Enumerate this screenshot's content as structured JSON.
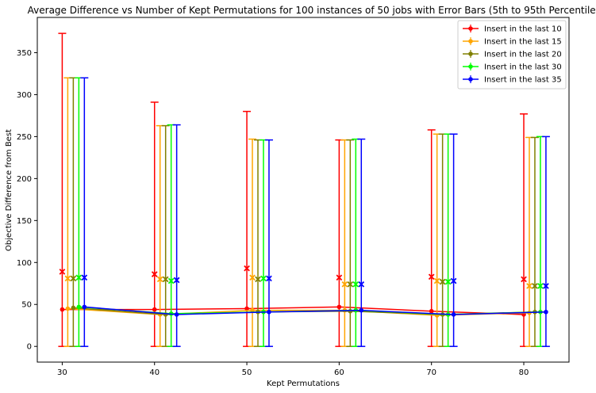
{
  "chart_data": {
    "type": "line",
    "title": "Average Difference vs Number of Kept Permutations for 100 instances of 50 jobs with Error Bars (5th to 95th Percentile)",
    "xlabel": "Kept Permutations",
    "ylabel": "Objective Difference from Best",
    "x": [
      30,
      40,
      50,
      60,
      70,
      80
    ],
    "xticks": [
      "30",
      "40",
      "50",
      "60",
      "70",
      "80"
    ],
    "yticks": [
      "0",
      "50",
      "100",
      "150",
      "200",
      "250",
      "300",
      "350"
    ],
    "xlim": [
      27.3,
      84.9
    ],
    "ylim": [
      -18.7,
      392.0
    ],
    "legend_position": "top-right",
    "series": [
      {
        "name": "Insert in the last 10",
        "color": "#ff0000",
        "offset": 0.0,
        "values": [
          44,
          44,
          45,
          47,
          42,
          38
        ],
        "lower": [
          0,
          0,
          0,
          0,
          0,
          0
        ],
        "upper": [
          373,
          291,
          280,
          246,
          258,
          277
        ],
        "means": [
          89,
          86,
          93,
          82,
          83,
          80
        ]
      },
      {
        "name": "Insert in the last 15",
        "color": "#ffa500",
        "offset": 0.6,
        "values": [
          45,
          38,
          43,
          43,
          37,
          40
        ],
        "lower": [
          0,
          0,
          0,
          0,
          0,
          0
        ],
        "upper": [
          320,
          263,
          247,
          246,
          253,
          249
        ],
        "means": [
          81,
          80,
          82,
          74,
          78,
          72
        ]
      },
      {
        "name": "Insert in the last 20",
        "color": "#808000",
        "offset": 1.2,
        "values": [
          46,
          38,
          41,
          42,
          38,
          41
        ],
        "lower": [
          0,
          0,
          0,
          0,
          0,
          0
        ],
        "upper": [
          320,
          263,
          246,
          246,
          253,
          249
        ],
        "means": [
          81,
          80,
          80,
          74,
          77,
          72
        ]
      },
      {
        "name": "Insert in the last 30",
        "color": "#00ff00",
        "offset": 1.8,
        "values": [
          47,
          39,
          41,
          43,
          38,
          41
        ],
        "lower": [
          0,
          0,
          0,
          0,
          0,
          0
        ],
        "upper": [
          320,
          264,
          246,
          247,
          253,
          250
        ],
        "means": [
          82,
          78,
          81,
          74,
          77,
          72
        ]
      },
      {
        "name": "Insert in the last 35",
        "color": "#0000ff",
        "offset": 2.4,
        "values": [
          47,
          38,
          41,
          43,
          38,
          41
        ],
        "lower": [
          0,
          0,
          0,
          0,
          0,
          0
        ],
        "upper": [
          320,
          264,
          246,
          247,
          253,
          250
        ],
        "means": [
          82,
          79,
          81,
          74,
          78,
          72
        ]
      }
    ]
  }
}
